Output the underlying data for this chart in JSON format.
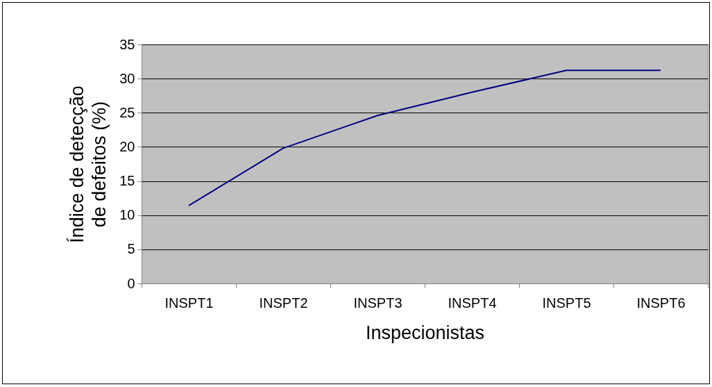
{
  "chart_data": {
    "type": "line",
    "xlabel": "Inspecionistas",
    "ylabel": "Índice de detecção de defeitos (%)",
    "categories": [
      "INSPT1",
      "INSPT2",
      "INSPT3",
      "INSPT4",
      "INSPT5",
      "INSPT6"
    ],
    "series": [
      {
        "color": "#000080",
        "values": [
          11.4,
          19.8,
          24.6,
          28,
          31.2,
          31.2
        ]
      }
    ],
    "ylim": [
      0,
      35
    ],
    "yticks": [
      0,
      5,
      10,
      15,
      20,
      25,
      30,
      35
    ],
    "grid": "y",
    "marker": "none",
    "line_style": "solid"
  }
}
